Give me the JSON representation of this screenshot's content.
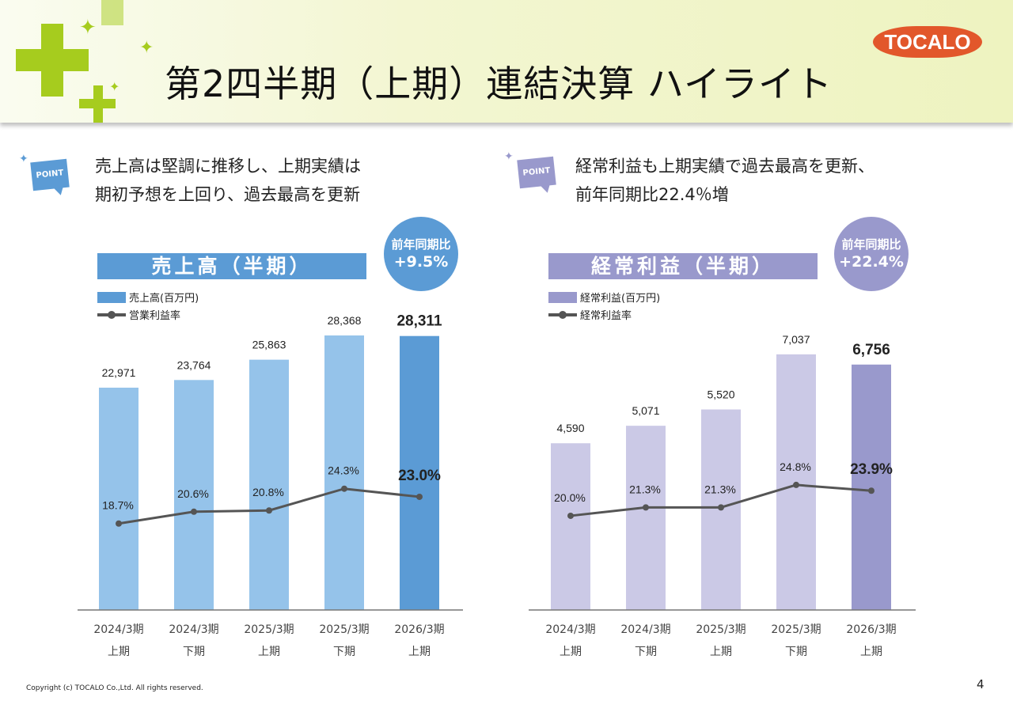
{
  "header": {
    "title": "第2四半期（上期）連結決算 ハイライト",
    "logo_text": "TOCALO"
  },
  "left": {
    "point_label": "POINT",
    "point_lines": [
      "売上高は堅調に推移し、上期実績は",
      "期初予想を上回り、過去最高を更新"
    ],
    "band_title": "売上高（半期）",
    "yoy_label": "前年同期比",
    "yoy_value": "+9.5%",
    "legend": [
      "売上高(百万円)",
      "営業利益率"
    ],
    "color_bar": "#95c3ea",
    "color_bar_highlight": "#5b9bd5",
    "color_accent": "#5b9bd5"
  },
  "right": {
    "point_label": "POINT",
    "point_lines": [
      "経常利益も上期実績で過去最高を更新、",
      "前年同期比22.4％増"
    ],
    "band_title": "経常利益（半期）",
    "yoy_label": "前年同期比",
    "yoy_value": "+22.4%",
    "legend": [
      "経常利益(百万円)",
      "経常利益率"
    ],
    "color_bar": "#cbc9e6",
    "color_bar_highlight": "#9999cc",
    "color_accent": "#9999cc"
  },
  "chart_data": [
    {
      "type": "bar",
      "categories": [
        [
          "2024/3期",
          "上期"
        ],
        [
          "2024/3期",
          "下期"
        ],
        [
          "2025/3期",
          "上期"
        ],
        [
          "2025/3期",
          "下期"
        ],
        [
          "2026/3期",
          "上期"
        ]
      ],
      "series": [
        {
          "name": "売上高(百万円)",
          "type": "bar",
          "values": [
            22971,
            23764,
            25863,
            28368,
            28311
          ],
          "labels": [
            "22,971",
            "23,764",
            "25,863",
            "28,368",
            "28,311"
          ]
        },
        {
          "name": "営業利益率",
          "type": "line",
          "values": [
            18.7,
            20.6,
            20.8,
            24.3,
            23.0
          ],
          "labels": [
            "18.7%",
            "20.6%",
            "20.8%",
            "24.3%",
            "23.0%"
          ]
        }
      ],
      "ylim": [
        0,
        30330
      ],
      "y2lim": [
        4.8,
        52
      ],
      "highlight_index": 4,
      "line_color": "#555555"
    },
    {
      "type": "bar",
      "categories": [
        [
          "2024/3期",
          "上期"
        ],
        [
          "2024/3期",
          "下期"
        ],
        [
          "2025/3期",
          "上期"
        ],
        [
          "2025/3期",
          "下期"
        ],
        [
          "2026/3期",
          "上期"
        ]
      ],
      "series": [
        {
          "name": "経常利益(百万円)",
          "type": "bar",
          "values": [
            4590,
            5071,
            5520,
            7037,
            6756
          ],
          "labels": [
            "4,590",
            "5,071",
            "5,520",
            "7,037",
            "6,756"
          ]
        },
        {
          "name": "経常利益率",
          "type": "line",
          "values": [
            20.0,
            21.3,
            21.3,
            24.8,
            23.9
          ],
          "labels": [
            "20.0%",
            "21.3%",
            "21.3%",
            "24.8%",
            "23.9%"
          ]
        }
      ],
      "ylim": [
        0,
        8080
      ],
      "y2lim": [
        5.35,
        51
      ],
      "highlight_index": 4,
      "line_color": "#555555"
    }
  ],
  "footer": {
    "copyright": "Copyright (c) TOCALO Co.,Ltd. All rights reserved.",
    "page": "4"
  }
}
